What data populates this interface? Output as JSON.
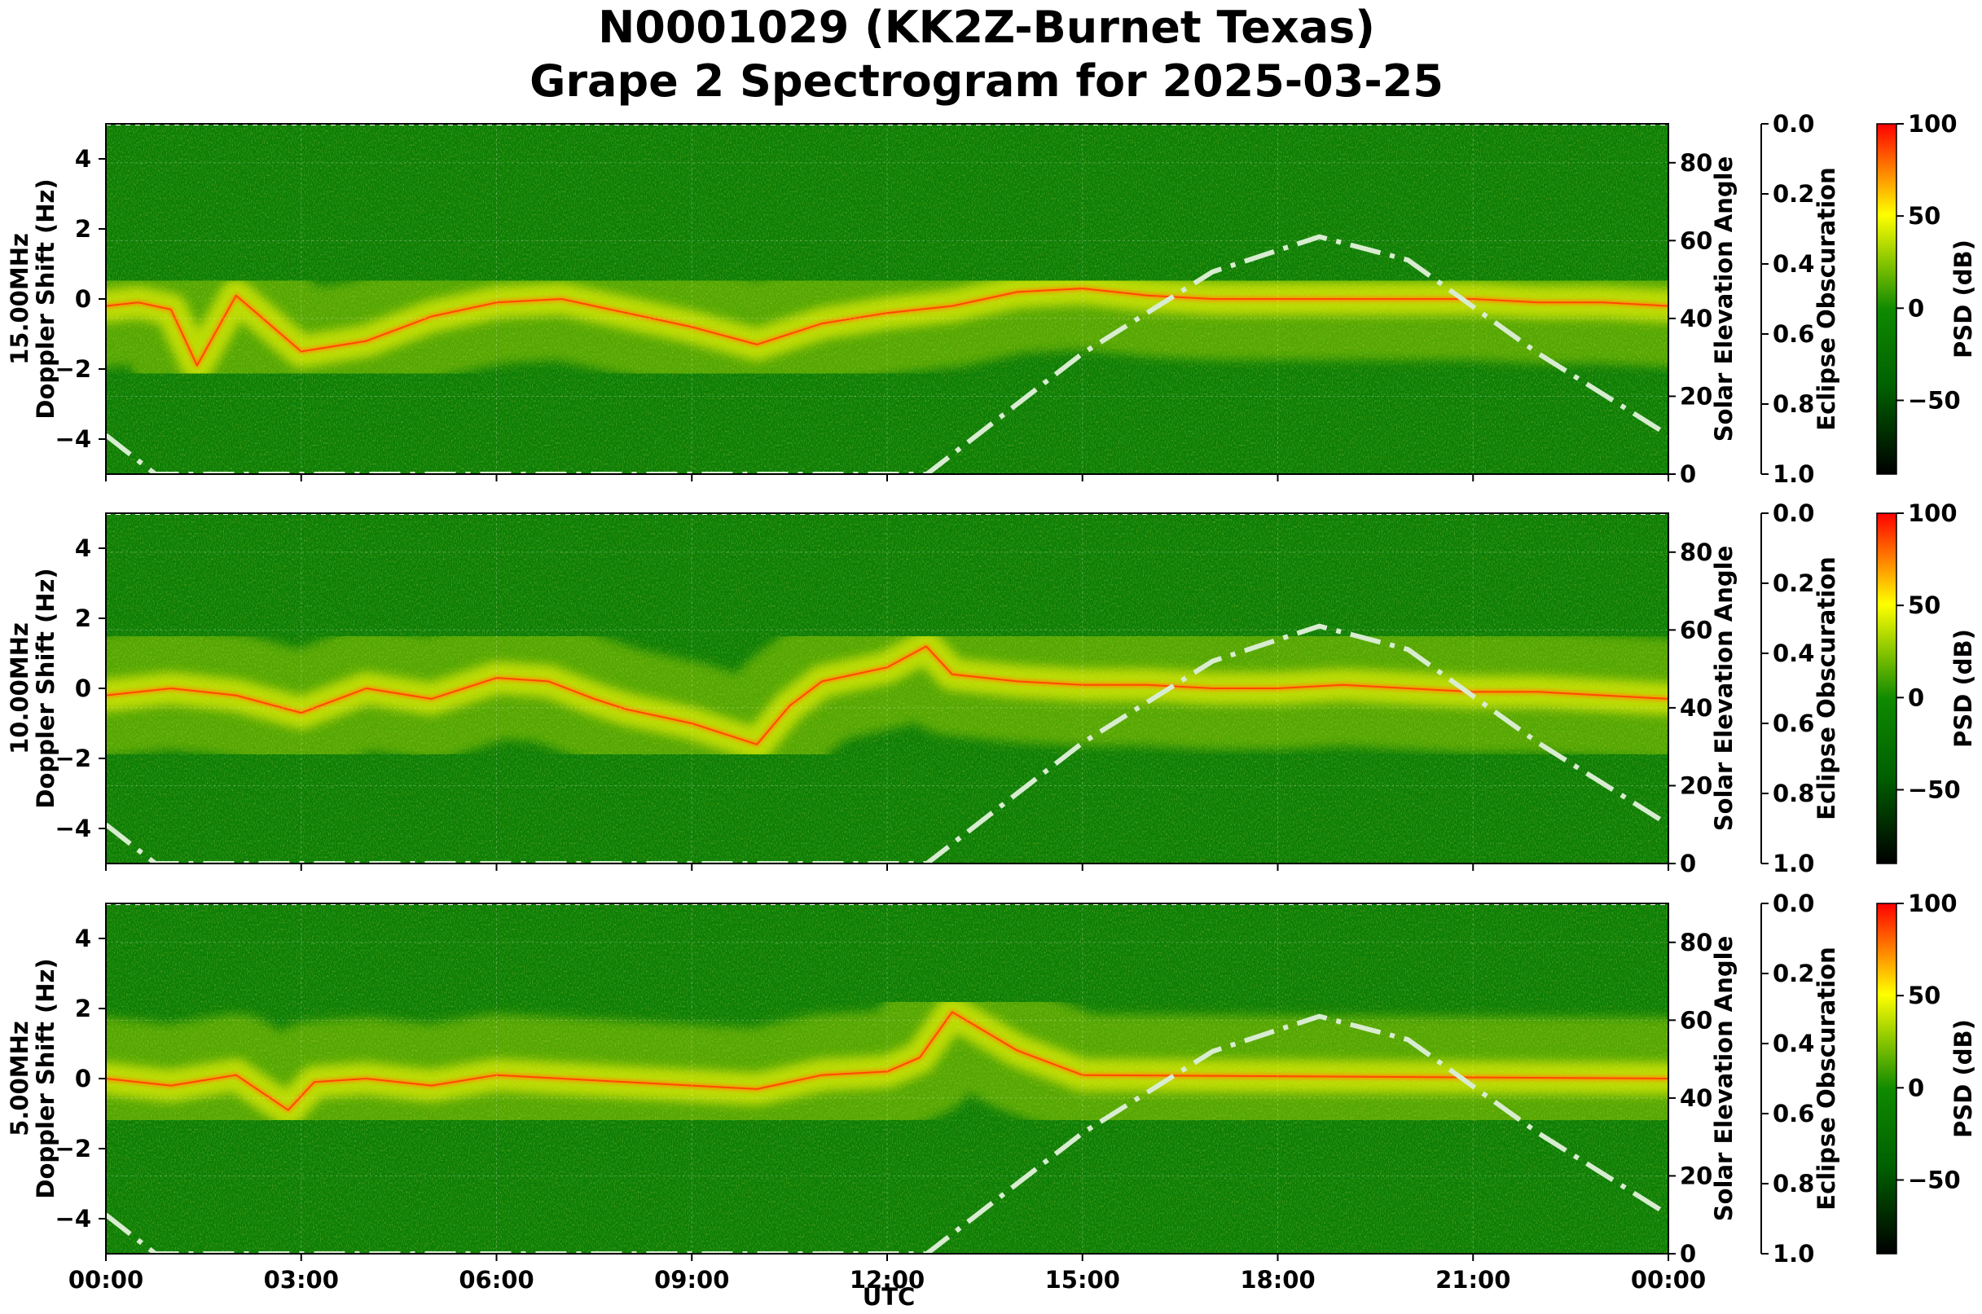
{
  "title": {
    "line1": "N0001029 (KK2Z-Burnet Texas)",
    "line2": "Grape 2 Spectrogram for 2025-03-25"
  },
  "chart_data": {
    "type": "heatmap",
    "colormap": [
      "#000000",
      "#008000",
      "#ffff00",
      "#ff0000"
    ],
    "psd_range_db": [
      -90,
      100
    ],
    "psd_ticks": [
      "100",
      "50",
      "0",
      "−50"
    ],
    "psd_tick_values": [
      100,
      50,
      0,
      -50
    ],
    "psd_label": "PSD (dB)",
    "x_label": "UTC",
    "x_ticks": [
      "00:00",
      "03:00",
      "06:00",
      "09:00",
      "12:00",
      "15:00",
      "18:00",
      "21:00",
      "00:00"
    ],
    "x_range_hours": [
      0,
      24
    ],
    "doppler_range_hz": [
      -5,
      5
    ],
    "doppler_ticks": [
      "4",
      "2",
      "0",
      "−2",
      "−4"
    ],
    "doppler_tick_values": [
      4,
      2,
      0,
      -2,
      -4
    ],
    "solar_label": "Solar Elevation Angle",
    "solar_range_deg": [
      0,
      90
    ],
    "solar_ticks": [
      "0",
      "20",
      "40",
      "60",
      "80"
    ],
    "solar_tick_values": [
      0,
      20,
      40,
      60,
      80
    ],
    "eclipse_label": "Eclipse Obscuration",
    "eclipse_range": [
      0.0,
      1.0
    ],
    "eclipse_ticks": [
      "0.0",
      "0.2",
      "0.4",
      "0.6",
      "0.8",
      "1.0"
    ],
    "eclipse_tick_values": [
      0.0,
      0.2,
      0.4,
      0.6,
      0.8,
      1.0
    ],
    "solar_elevation_curve": {
      "hours": [
        0,
        0.76,
        12.61,
        15,
        17,
        18.64,
        20,
        22,
        24
      ],
      "degrees": [
        10,
        0,
        0,
        31,
        52,
        61,
        55,
        31,
        10
      ]
    },
    "panels": [
      {
        "name": "15.00MHz",
        "ylabel": "Doppler Shift (Hz)",
        "carrier_trace": {
          "hours": [
            0,
            0.5,
            1.0,
            1.4,
            1.7,
            2.0,
            3.0,
            4.0,
            5.0,
            6.0,
            7.0,
            8.0,
            9.0,
            10.0,
            11.0,
            12.0,
            13.0,
            14.0,
            15.0,
            16.0,
            17.0,
            18.0,
            19.0,
            20.0,
            21.0,
            22.0,
            23.0,
            24.0
          ],
          "hz": [
            -0.2,
            -0.1,
            -0.3,
            -1.9,
            -0.9,
            0.1,
            -1.5,
            -1.2,
            -0.5,
            -0.1,
            0.0,
            -0.4,
            -0.8,
            -1.3,
            -0.7,
            -0.4,
            -0.2,
            0.2,
            0.3,
            0.1,
            0.0,
            0.0,
            0.0,
            0.0,
            0.0,
            -0.1,
            -0.1,
            -0.2
          ]
        }
      },
      {
        "name": "10.00MHz",
        "ylabel": "Doppler Shift (Hz)",
        "carrier_trace": {
          "hours": [
            0,
            1,
            2,
            3,
            4,
            5,
            6,
            6.8,
            7.5,
            8,
            9,
            9.5,
            10,
            10.5,
            11,
            12,
            12.6,
            13,
            14,
            15,
            16,
            17,
            18,
            19,
            20,
            21,
            22,
            23,
            24
          ],
          "hz": [
            -0.2,
            0.0,
            -0.2,
            -0.7,
            0.0,
            -0.3,
            0.3,
            0.2,
            -0.3,
            -0.6,
            -1.0,
            -1.3,
            -1.6,
            -0.5,
            0.2,
            0.6,
            1.2,
            0.4,
            0.2,
            0.1,
            0.1,
            0.0,
            0.0,
            0.1,
            0.0,
            -0.1,
            -0.1,
            -0.2,
            -0.3
          ]
        }
      },
      {
        "name": "5.00MHz",
        "ylabel": "Doppler Shift (Hz)",
        "carrier_trace": {
          "hours": [
            0,
            1,
            2,
            2.8,
            3.2,
            4,
            5,
            6,
            7,
            8,
            9,
            10,
            11,
            12,
            12.5,
            13,
            14,
            15,
            24
          ],
          "hz": [
            0.0,
            -0.2,
            0.1,
            -0.9,
            -0.1,
            0.0,
            -0.2,
            0.1,
            0.0,
            -0.1,
            -0.2,
            -0.3,
            0.1,
            0.2,
            0.6,
            1.9,
            0.8,
            0.1,
            0.0
          ]
        }
      }
    ]
  }
}
